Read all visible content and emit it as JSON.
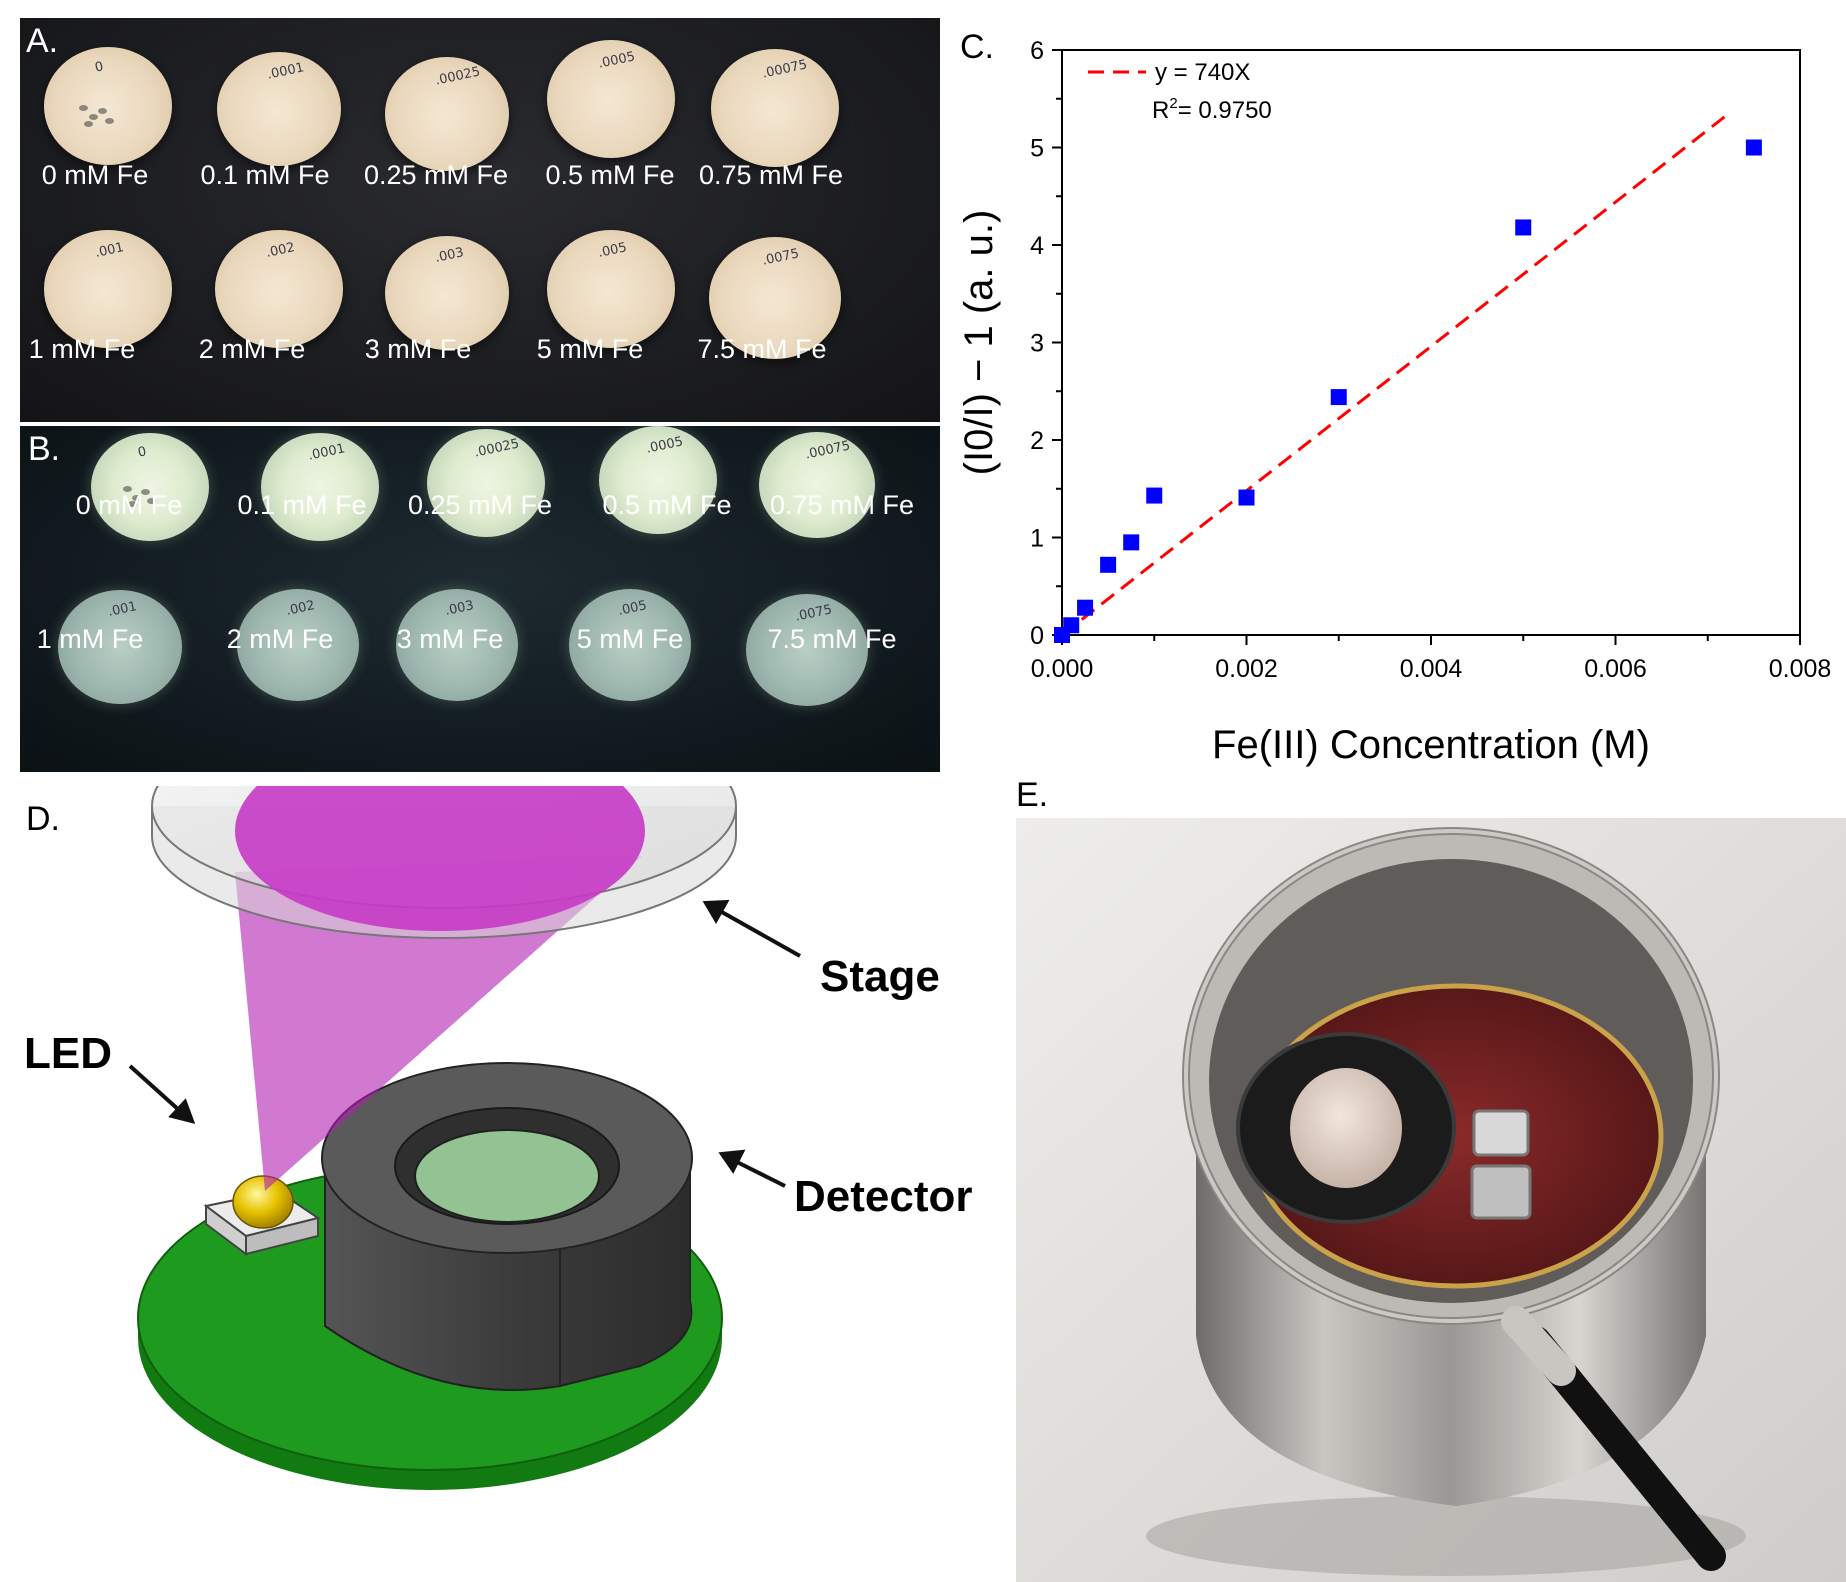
{
  "panelA": {
    "letter": "A.",
    "samples": [
      {
        "label": "0 mM Fe",
        "note": "0"
      },
      {
        "label": "0.1 mM Fe",
        "note": ".0001"
      },
      {
        "label": "0.25 mM Fe",
        "note": ".00025"
      },
      {
        "label": "0.5 mM Fe",
        "note": ".0005"
      },
      {
        "label": "0.75 mM Fe",
        "note": ".00075"
      },
      {
        "label": "1 mM Fe",
        "note": ".001"
      },
      {
        "label": "2 mM Fe",
        "note": ".002"
      },
      {
        "label": "3 mM Fe",
        "note": ".003"
      },
      {
        "label": "5 mM Fe",
        "note": ".005"
      },
      {
        "label": "7.5 mM Fe",
        "note": ".0075"
      }
    ]
  },
  "panelB": {
    "letter": "B.",
    "samples": [
      {
        "label": "0 mM Fe",
        "note": "0"
      },
      {
        "label": "0.1 mM Fe",
        "note": ".0001"
      },
      {
        "label": "0.25 mM Fe",
        "note": ".00025"
      },
      {
        "label": "0.5 mM Fe",
        "note": ".0005"
      },
      {
        "label": "0.75 mM Fe",
        "note": ".00075"
      },
      {
        "label": "1 mM Fe",
        "note": ".001"
      },
      {
        "label": "2 mM Fe",
        "note": ".002"
      },
      {
        "label": "3 mM Fe",
        "note": ".003"
      },
      {
        "label": "5 mM Fe",
        "note": ".005"
      },
      {
        "label": "7.5 mM Fe",
        "note": ".0075"
      }
    ]
  },
  "panelC": {
    "letter": "C."
  },
  "chart_data": {
    "type": "scatter",
    "xlabel": "Fe(III) Concentration (M)",
    "ylabel": "(I0/I) − 1 (a. u.)",
    "xlim": [
      0,
      0.008
    ],
    "ylim": [
      0,
      6
    ],
    "xticks": [
      "0.000",
      "0.002",
      "0.004",
      "0.006",
      "0.008"
    ],
    "yticks": [
      "0",
      "1",
      "2",
      "3",
      "4",
      "5",
      "6"
    ],
    "series": [
      {
        "marker": "square",
        "color": "#0000ff",
        "x": [
          0,
          0.0001,
          0.00025,
          0.0005,
          0.00075,
          0.001,
          0.002,
          0.003,
          0.005,
          0.0075
        ],
        "y": [
          0.0,
          0.1,
          0.28,
          0.72,
          0.95,
          1.43,
          1.41,
          2.44,
          4.18,
          5.0
        ]
      }
    ],
    "fit": {
      "slope": 740,
      "x_range": [
        0,
        0.0072
      ],
      "color": "#ff0000",
      "style": "dashed"
    },
    "legend": {
      "equation": "y = 740X",
      "r2_label": "R",
      "r2_sup": "2",
      "r2_value": "= 0.9750",
      "position": "top-left"
    }
  },
  "panelD": {
    "letter": "D.",
    "labels": {
      "stage": "Stage",
      "led": "LED",
      "detector": "Detector"
    },
    "colors": {
      "board": "#1e9a1e",
      "beam": "#c23ac2",
      "detector_body": "#4a4a4a",
      "window": "#93c293",
      "led": "#e6c200"
    }
  },
  "panelE": {
    "letter": "E."
  }
}
